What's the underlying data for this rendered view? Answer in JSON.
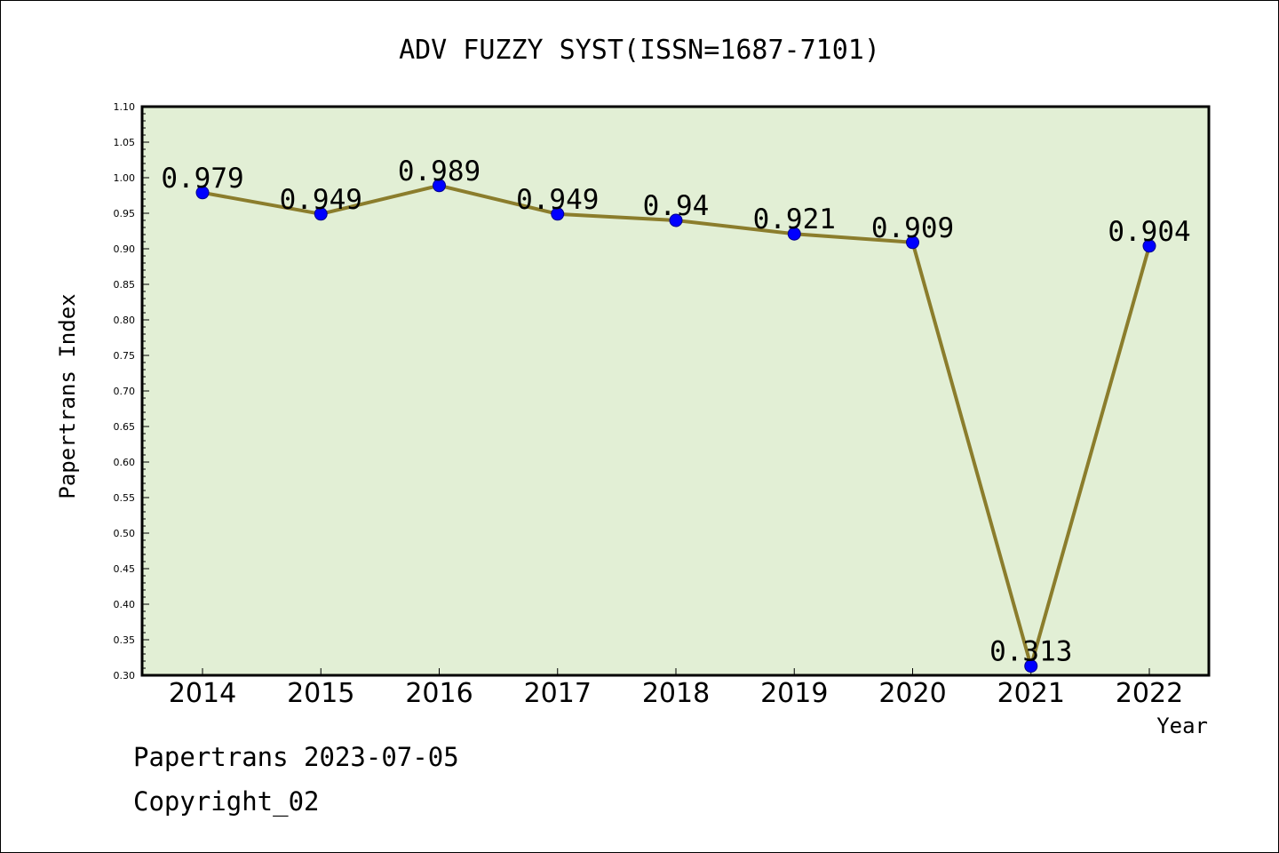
{
  "chart_data": {
    "type": "line",
    "title": "ADV FUZZY SYST(ISSN=1687-7101)",
    "xlabel": "Year",
    "ylabel": "Papertrans Index",
    "categories": [
      "2014",
      "2015",
      "2016",
      "2017",
      "2018",
      "2019",
      "2020",
      "2021",
      "2022"
    ],
    "series": [
      {
        "values": [
          0.979,
          0.949,
          0.989,
          0.949,
          0.94,
          0.921,
          0.909,
          0.313,
          0.904
        ],
        "labels": [
          "0.979",
          "0.949",
          "0.989",
          "0.949",
          "0.94",
          "0.921",
          "0.909",
          "0.313",
          "0.904"
        ]
      }
    ],
    "ylim": [
      0.3,
      1.1
    ],
    "yticks": [
      "0.30",
      "0.35",
      "0.40",
      "0.45",
      "0.50",
      "0.55",
      "0.60",
      "0.65",
      "0.70",
      "0.75",
      "0.80",
      "0.85",
      "0.90",
      "0.95",
      "1.00",
      "1.05",
      "1.10"
    ],
    "grid": false,
    "colors": {
      "background": "#e2efd5",
      "line": "#8b7d2c",
      "marker": "#0000ff"
    }
  },
  "footer": {
    "line1": "Papertrans 2023-07-05",
    "line2": "Copyright_02"
  }
}
